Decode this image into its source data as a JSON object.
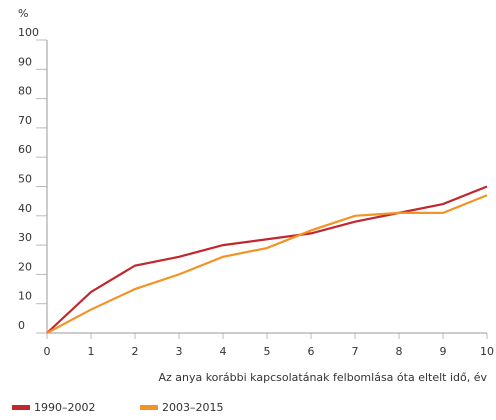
{
  "chart_data": {
    "type": "line",
    "ylabel": "%",
    "xlabel": "Az anya korábbi kapcsolatának felbomlása óta eltelt idő, év",
    "x": [
      0,
      1,
      2,
      3,
      4,
      5,
      6,
      7,
      8,
      9,
      10
    ],
    "series": [
      {
        "name": "1990–2002",
        "color": "#c1272d",
        "values": [
          0,
          14,
          23,
          26,
          30,
          32,
          34,
          38,
          41,
          44,
          50
        ]
      },
      {
        "name": "2003–2015",
        "color": "#f39325",
        "values": [
          0,
          8,
          15,
          20,
          26,
          29,
          35,
          40,
          41,
          41,
          47
        ]
      }
    ],
    "xlim": [
      0,
      10
    ],
    "xticks": [
      0,
      1,
      2,
      3,
      4,
      5,
      6,
      7,
      8,
      9,
      10
    ],
    "ylim": [
      0,
      100
    ],
    "yticks": [
      0,
      10,
      20,
      30,
      40,
      50,
      60,
      70,
      80,
      90,
      100
    ],
    "grid": false
  }
}
